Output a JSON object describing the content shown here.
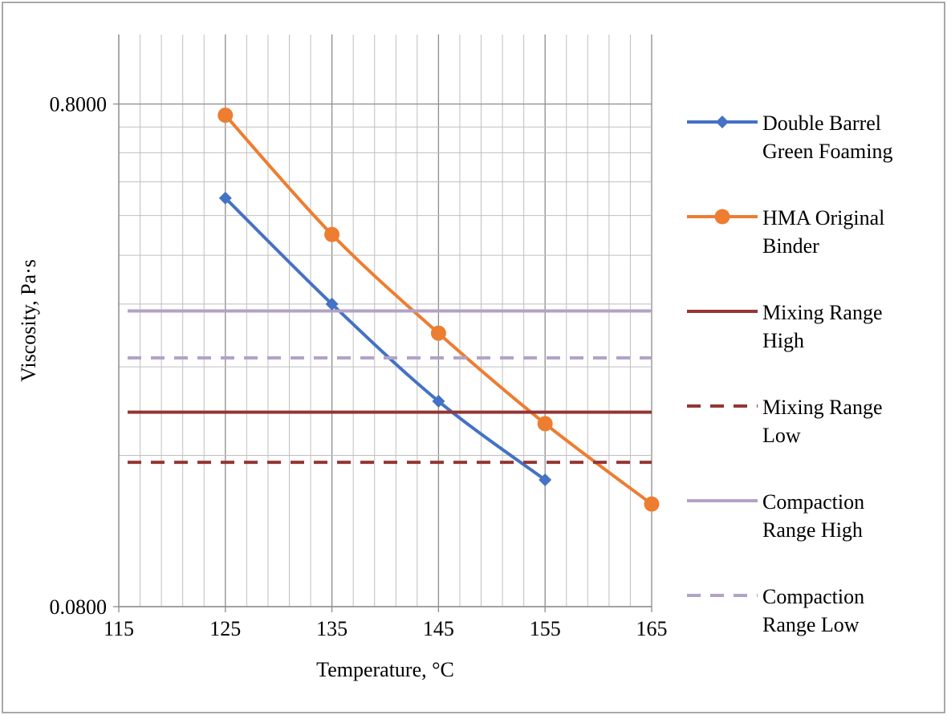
{
  "chart_data": {
    "type": "line",
    "title": "",
    "xlabel": "Temperature, °C",
    "ylabel": "Viscosity, Pa·s",
    "xlim": [
      115,
      165
    ],
    "ylim": [
      0.08,
      1.1
    ],
    "yscale": "log",
    "x_ticks": [
      115,
      125,
      135,
      145,
      155,
      165
    ],
    "x_tick_labels": [
      "115",
      "125",
      "135",
      "145",
      "155",
      "165"
    ],
    "y_ticks": [
      0.08,
      0.8
    ],
    "y_tick_labels": [
      "0.0800",
      "0.8000"
    ],
    "grid": true,
    "legend_position": "right",
    "series": [
      {
        "name": "Double Barrel Green Foaming",
        "legend_lines": [
          "Double Barrel",
          "Green Foaming"
        ],
        "color": "#4472c4",
        "marker": "diamond",
        "dash": "solid",
        "x": [
          125,
          135,
          145,
          155
        ],
        "y": [
          0.52,
          0.32,
          0.205,
          0.143
        ]
      },
      {
        "name": "HMA Original Binder",
        "legend_lines": [
          "HMA Original",
          "Binder"
        ],
        "color": "#ed7d31",
        "marker": "circle",
        "dash": "solid",
        "x": [
          125,
          135,
          145,
          155,
          165
        ],
        "y": [
          0.76,
          0.44,
          0.28,
          0.185,
          0.128
        ]
      },
      {
        "name": "Mixing Range High",
        "legend_lines": [
          "Mixing Range",
          "High"
        ],
        "color": "#943634",
        "marker": "none",
        "dash": "solid",
        "x": [
          115,
          165
        ],
        "y": [
          0.195,
          0.195
        ]
      },
      {
        "name": "Mixing Range Low",
        "legend_lines": [
          "Mixing Range",
          "Low"
        ],
        "color": "#943634",
        "marker": "none",
        "dash": "dashed",
        "x": [
          115,
          165
        ],
        "y": [
          0.155,
          0.155
        ]
      },
      {
        "name": "Compaction Range High",
        "legend_lines": [
          "Compaction",
          "Range High"
        ],
        "color": "#b3a2c7",
        "marker": "none",
        "dash": "solid",
        "x": [
          115,
          165
        ],
        "y": [
          0.31,
          0.31
        ]
      },
      {
        "name": "Compaction Range Low",
        "legend_lines": [
          "Compaction",
          "Range Low"
        ],
        "color": "#b3a2c7",
        "marker": "none",
        "dash": "dashed",
        "x": [
          115,
          165
        ],
        "y": [
          0.25,
          0.25
        ]
      }
    ]
  }
}
